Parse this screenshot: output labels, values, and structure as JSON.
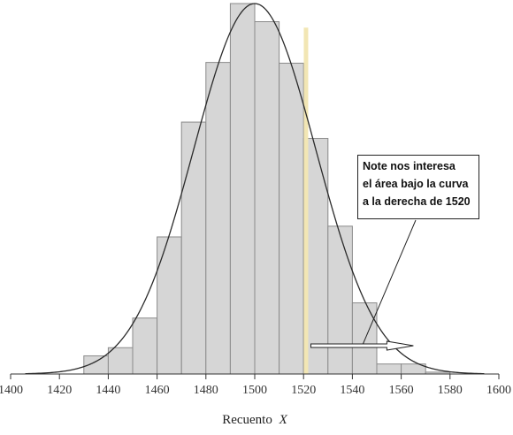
{
  "chart_data": {
    "type": "bar",
    "title": "",
    "xlabel_main": "Recuento",
    "xlabel_var": "X",
    "xlim": [
      1400,
      1600
    ],
    "ylim": [
      0,
      1
    ],
    "xticks": [
      1400,
      1420,
      1440,
      1460,
      1480,
      1500,
      1520,
      1540,
      1560,
      1580,
      1600
    ],
    "bin_width": 10,
    "bins": [
      {
        "start": 1430,
        "value": 0.049
      },
      {
        "start": 1440,
        "value": 0.071
      },
      {
        "start": 1450,
        "value": 0.151
      },
      {
        "start": 1460,
        "value": 0.37
      },
      {
        "start": 1470,
        "value": 0.68
      },
      {
        "start": 1480,
        "value": 0.841
      },
      {
        "start": 1490,
        "value": 1.0
      },
      {
        "start": 1500,
        "value": 0.951
      },
      {
        "start": 1510,
        "value": 0.839
      },
      {
        "start": 1520,
        "value": 0.636
      },
      {
        "start": 1530,
        "value": 0.399
      },
      {
        "start": 1540,
        "value": 0.192
      },
      {
        "start": 1550,
        "value": 0.027
      },
      {
        "start": 1560,
        "value": 0.027
      },
      {
        "start": 1570,
        "value": 0.005
      }
    ],
    "normal_curve": {
      "mean": 1500,
      "sd": 25,
      "peak": 1.0,
      "from": 1406,
      "to": 1594
    },
    "highlight_x": 1521,
    "annotation": {
      "lines": [
        "Note nos interesa",
        "el área bajo la curva",
        "a la derecha de 1520"
      ],
      "arrow_from_x": 1523,
      "arrow_to_x": 1565
    },
    "colors": {
      "bar_fill": "#d6d6d6",
      "bar_stroke": "#8a8a8a",
      "curve": "#2a2a2a",
      "highlight": "#f2e6b4",
      "axis": "#333333"
    }
  }
}
